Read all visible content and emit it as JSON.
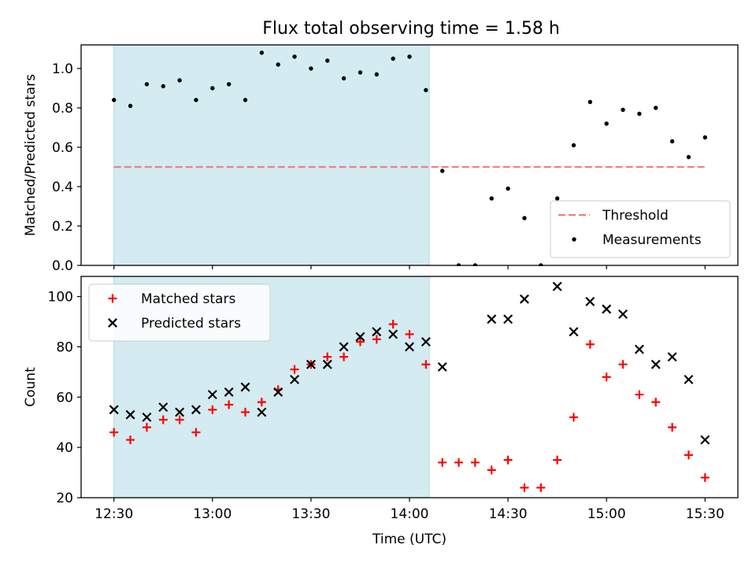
{
  "chart_data": [
    {
      "type": "scatter",
      "title": "Flux total observing time = 1.58 h",
      "xlabel": "",
      "ylabel": "Matched/Predicted stars",
      "xlim": [
        "12:20",
        "15:40"
      ],
      "ylim": [
        0,
        1.12
      ],
      "y_ticks": [
        "0.0",
        "0.2",
        "0.4",
        "0.6",
        "0.8",
        "1.0"
      ],
      "x_ticks": [
        "12:30",
        "13:00",
        "13:30",
        "14:00",
        "14:30",
        "15:00",
        "15:30"
      ],
      "x_ticklabels_visible": false,
      "shaded_region": {
        "x_start": "12:30",
        "x_end": "14:06",
        "color": "#add8e6"
      },
      "legend": {
        "position": "lower right",
        "entries": [
          "Threshold",
          "Measurements"
        ]
      },
      "threshold": {
        "name": "Threshold",
        "y": 0.5,
        "x_start": "12:30",
        "x_end": "15:30",
        "color": "#f08080",
        "style": "dashed"
      },
      "series": [
        {
          "name": "Measurements",
          "marker": "dot",
          "color": "#000000",
          "x": [
            "12:30",
            "12:35",
            "12:40",
            "12:45",
            "12:50",
            "12:55",
            "13:00",
            "13:05",
            "13:10",
            "13:15",
            "13:20",
            "13:25",
            "13:30",
            "13:35",
            "13:40",
            "13:45",
            "13:50",
            "13:55",
            "14:00",
            "14:05",
            "14:10",
            "14:15",
            "14:20",
            "14:25",
            "14:30",
            "14:35",
            "14:40",
            "14:45",
            "14:50",
            "14:55",
            "15:00",
            "15:05",
            "15:10",
            "15:15",
            "15:20",
            "15:25",
            "15:30"
          ],
          "y": [
            0.84,
            0.81,
            0.92,
            0.91,
            0.94,
            0.84,
            0.9,
            0.92,
            0.84,
            1.08,
            1.02,
            1.06,
            1.0,
            1.04,
            0.95,
            0.98,
            0.97,
            1.05,
            1.06,
            0.89,
            0.48,
            0.0,
            0.0,
            0.34,
            0.39,
            0.24,
            0.0,
            0.34,
            0.61,
            0.83,
            0.72,
            0.79,
            0.77,
            0.8,
            0.63,
            0.55,
            0.65
          ]
        }
      ]
    },
    {
      "type": "scatter",
      "title": "",
      "xlabel": "Time (UTC)",
      "ylabel": "Count",
      "xlim": [
        "12:20",
        "15:40"
      ],
      "ylim": [
        20,
        108
      ],
      "y_ticks": [
        "20",
        "40",
        "60",
        "80",
        "100"
      ],
      "x_ticks": [
        "12:30",
        "13:00",
        "13:30",
        "14:00",
        "14:30",
        "15:00",
        "15:30"
      ],
      "shaded_region": {
        "x_start": "12:30",
        "x_end": "14:06",
        "color": "#add8e6"
      },
      "legend": {
        "position": "upper left",
        "entries": [
          "Matched stars",
          "Predicted stars"
        ]
      },
      "x": [
        "12:30",
        "12:35",
        "12:40",
        "12:45",
        "12:50",
        "12:55",
        "13:00",
        "13:05",
        "13:10",
        "13:15",
        "13:20",
        "13:25",
        "13:30",
        "13:35",
        "13:40",
        "13:45",
        "13:50",
        "13:55",
        "14:00",
        "14:05",
        "14:10",
        "14:15",
        "14:20",
        "14:25",
        "14:30",
        "14:35",
        "14:40",
        "14:45",
        "14:50",
        "14:55",
        "15:00",
        "15:05",
        "15:10",
        "15:15",
        "15:20",
        "15:25",
        "15:30"
      ],
      "series": [
        {
          "name": "Matched stars",
          "marker": "plus",
          "color": "#ff0000",
          "values": [
            46,
            43,
            48,
            51,
            51,
            46,
            55,
            57,
            54,
            58,
            63,
            71,
            73,
            76,
            76,
            82,
            83,
            89,
            85,
            73,
            34,
            34,
            34,
            31,
            35,
            24,
            24,
            35,
            52,
            81,
            68,
            73,
            61,
            58,
            48,
            37,
            28
          ]
        },
        {
          "name": "Predicted stars",
          "marker": "x",
          "color": "#000000",
          "values": [
            55,
            53,
            52,
            56,
            54,
            55,
            61,
            62,
            64,
            54,
            62,
            67,
            73,
            73,
            80,
            84,
            86,
            85,
            80,
            82,
            72,
            null,
            null,
            91,
            91,
            99,
            null,
            104,
            86,
            98,
            95,
            93,
            79,
            73,
            76,
            67,
            43
          ]
        }
      ]
    }
  ]
}
